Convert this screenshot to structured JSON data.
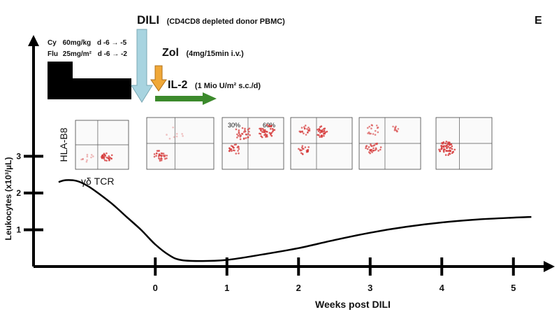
{
  "panel_letter": "E",
  "regimen": {
    "cy": {
      "prefix": "Cy",
      "dose": "60mg/kg",
      "days": "d -6 → -5"
    },
    "flu": {
      "prefix": "Flu",
      "dose": "25mg/m²",
      "days": "d -6 → -2"
    }
  },
  "annotations": {
    "dili": {
      "label": "DILI",
      "detail": "(CD4CD8 depleted donor PBMC)",
      "arrow_color": "#a8d4e0"
    },
    "zol": {
      "label": "Zol",
      "detail": "(4mg/15min i.v.)",
      "arrow_color": "#f0a838"
    },
    "il2": {
      "label": "IL-2",
      "detail": "(1 Mio U/m² s.c./d)",
      "arrow_color": "#3c8a2c"
    }
  },
  "flow_panels": {
    "ylabel": "HLA-B8",
    "xlabel": "γδ TCR",
    "third_panel_labels": [
      "30%",
      "60%"
    ],
    "dot_color": "#d63a3a"
  },
  "chart_data": {
    "type": "line",
    "xlabel": "Weeks post DILI",
    "ylabel": "Leukocytes (x10³/µL)",
    "x_ticks": [
      0,
      1,
      2,
      3,
      4,
      5
    ],
    "y_ticks": [
      1,
      2,
      3
    ],
    "xlim": [
      -1.7,
      5.5
    ],
    "ylim": [
      0,
      6.3
    ],
    "series": [
      {
        "x": [
          -1.35,
          -1.25,
          -1.1,
          -0.95,
          -0.8,
          -0.6,
          -0.4,
          -0.2,
          0.0,
          0.2,
          0.35,
          0.6,
          1.0,
          1.5,
          2.0,
          2.5,
          3.0,
          3.5,
          4.0,
          4.5,
          5.0,
          5.25
        ],
        "y": [
          2.3,
          2.35,
          2.33,
          2.2,
          2.0,
          1.7,
          1.35,
          1.0,
          0.6,
          0.3,
          0.18,
          0.15,
          0.18,
          0.33,
          0.5,
          0.72,
          0.92,
          1.08,
          1.2,
          1.28,
          1.33,
          1.35
        ],
        "color": "#000000"
      }
    ]
  }
}
